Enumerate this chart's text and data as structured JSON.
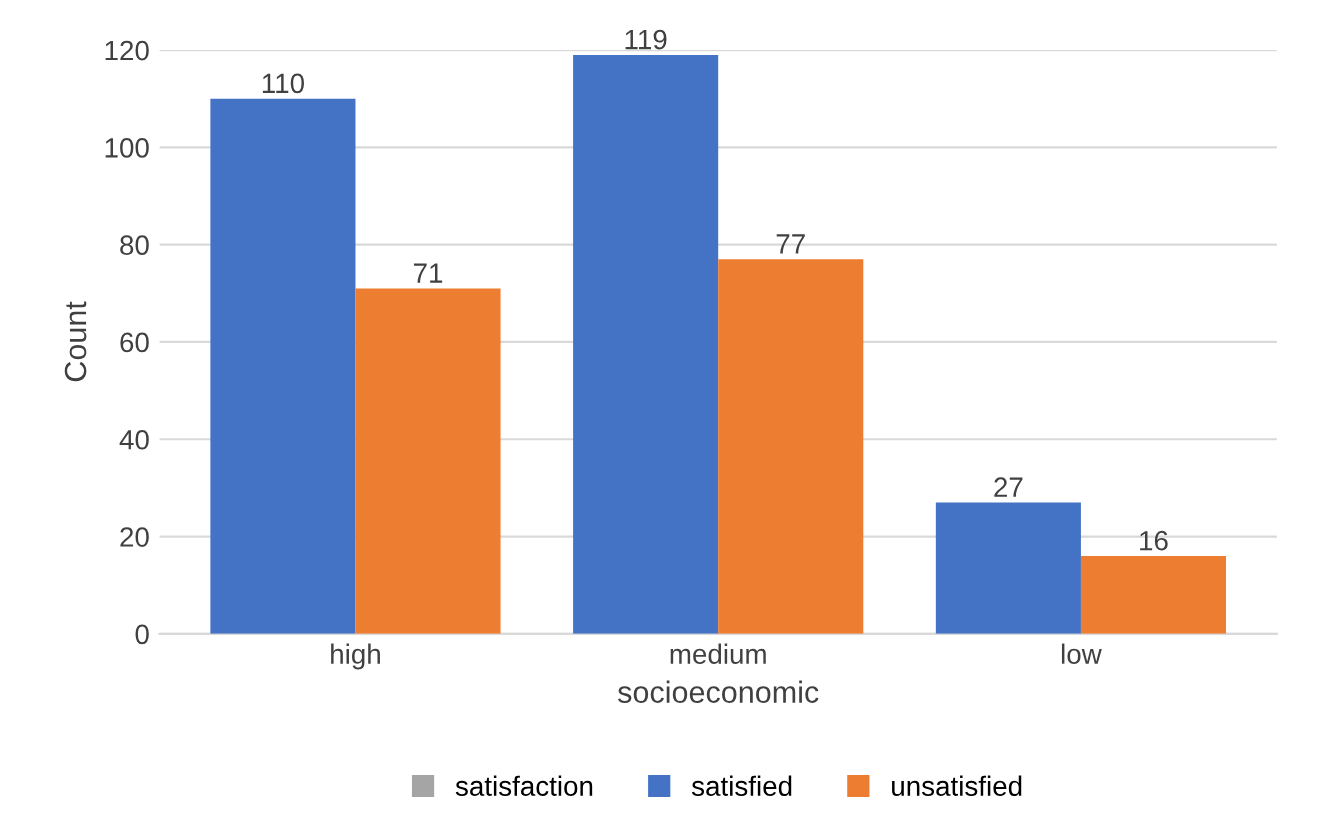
{
  "chart_data": {
    "type": "bar",
    "xlabel": "socioeconomic",
    "ylabel": "Count",
    "categories": [
      "high",
      "medium",
      "low"
    ],
    "series": [
      {
        "name": "satisfied",
        "color": "#4472c4",
        "values": [
          110,
          119,
          27
        ]
      },
      {
        "name": "unsatisfied",
        "color": "#ed7d31",
        "values": [
          71,
          77,
          16
        ]
      }
    ],
    "legend_title": "satisfaction",
    "ylim": [
      0,
      120
    ],
    "yticks": [
      0,
      20,
      40,
      60,
      80,
      100,
      120
    ],
    "grid": "y",
    "legend": "bottom",
    "data_labels": true
  }
}
